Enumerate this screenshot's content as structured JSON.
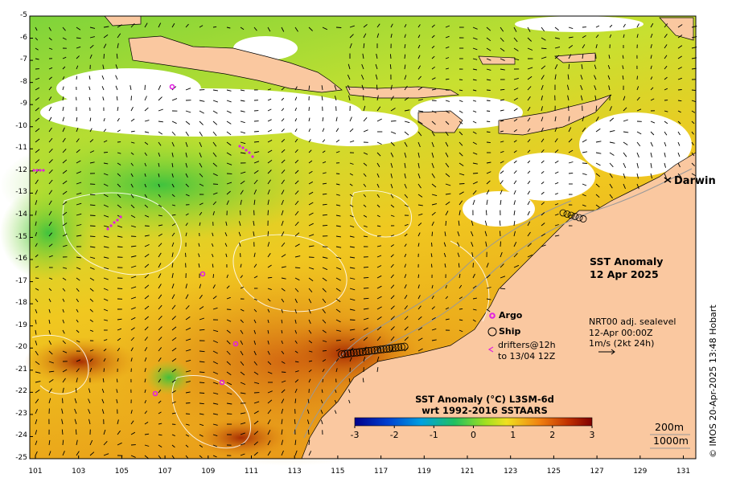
{
  "map": {
    "title_line1": "SST Anomaly",
    "title_line2": "12 Apr 2025",
    "place_label": "Darwin",
    "lat_ticks": [
      "-5",
      "-6",
      "-7",
      "-8",
      "-9",
      "-10",
      "-11",
      "-12",
      "-13",
      "-14",
      "-15",
      "-16",
      "-17",
      "-18",
      "-19",
      "-20",
      "-21",
      "-22",
      "-23",
      "-24",
      "-25"
    ],
    "lon_ticks": [
      "101",
      "103",
      "105",
      "107",
      "109",
      "111",
      "113",
      "115",
      "117",
      "119",
      "121",
      "123",
      "125",
      "127",
      "129",
      "131"
    ],
    "colors": {
      "land": "#fac8a0",
      "cloud": "#ffffff",
      "anomaly_low": "#00008b",
      "anomaly_zero": "#22b14c",
      "anomaly_high": "#8b0000",
      "argo": "#e020e0",
      "contours": "#ffffff"
    }
  },
  "legend": {
    "argo_label": "Argo",
    "ship_label": "Ship",
    "drifters_line1": "drifters@12h",
    "drifters_line2": "to 13/04 12Z",
    "sealevel_line1": "NRT00 adj. sealevel",
    "sealevel_line2": "12-Apr 00:00Z",
    "sealevel_line3": "1m/s (2kt 24h)"
  },
  "colorbar": {
    "title_line1": "SST Anomaly (°C) L3SM-6d",
    "title_line2": "wrt 1992-2016 SSTAARS",
    "ticks": [
      "-3",
      "-2",
      "-1",
      "0",
      "1",
      "2",
      "3"
    ],
    "min": -3,
    "max": 3
  },
  "depth_labels": {
    "line1": "200m",
    "line2": "1000m"
  },
  "credit": "© IMOS 20-Apr-2025 13:48 Hobart"
}
